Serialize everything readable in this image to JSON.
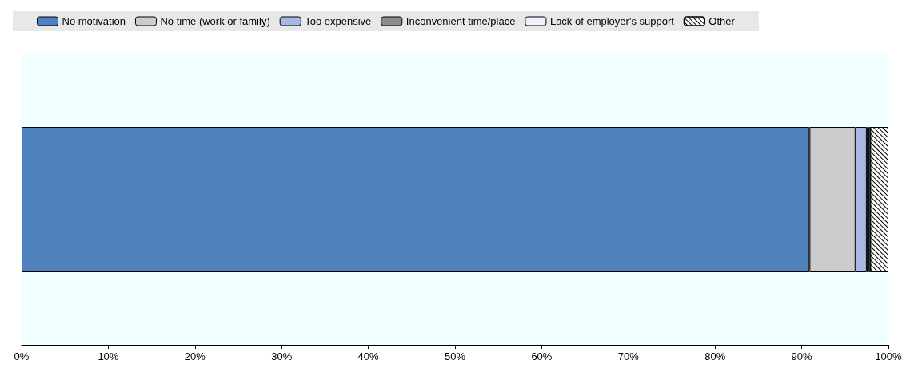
{
  "chart_data": {
    "type": "bar",
    "orientation": "horizontal",
    "stacked": true,
    "categories": [
      null
    ],
    "series": [
      {
        "name": "No motivation",
        "color": "#4f81bd",
        "values": [
          90.9
        ]
      },
      {
        "name": "No time (work or family)",
        "color": "#cccccc",
        "values": [
          5.3
        ]
      },
      {
        "name": "Too expensive",
        "color": "#a9b8e3",
        "values": [
          1.3
        ]
      },
      {
        "name": "Inconvenient time/place",
        "color": "#8c8c8c",
        "values": [
          0.2
        ]
      },
      {
        "name": "Lack of employer's support",
        "color": "#eef1fb",
        "values": [
          0.2
        ]
      },
      {
        "name": "Other",
        "color": "#ffffff",
        "values": [
          2.1
        ]
      }
    ],
    "xlim": [
      0,
      100
    ],
    "xticks": [
      {
        "value": 0,
        "label": "0%"
      },
      {
        "value": 10,
        "label": "10%"
      },
      {
        "value": 20,
        "label": "20%"
      },
      {
        "value": 30,
        "label": "30%"
      },
      {
        "value": 40,
        "label": "40%"
      },
      {
        "value": 50,
        "label": "50%"
      },
      {
        "value": 60,
        "label": "60%"
      },
      {
        "value": 70,
        "label": "70%"
      },
      {
        "value": 80,
        "label": "80%"
      },
      {
        "value": 90,
        "label": "90%"
      },
      {
        "value": 100,
        "label": "100%"
      }
    ],
    "grid": false,
    "legend": "top"
  }
}
